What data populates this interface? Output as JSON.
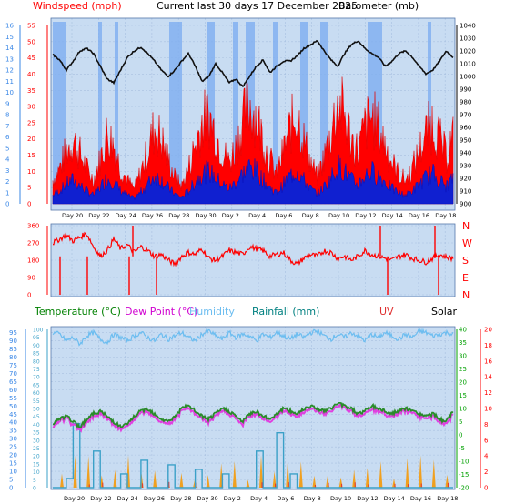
{
  "header": {
    "left_title": "Windspeed (mph)",
    "center_title": "Current last 30 days 17 December 2025",
    "right_title": "Barometer (mb)"
  },
  "colors": {
    "background": "#cfdff2",
    "panel_bg": "#cfe0f4",
    "axis_red": "#ff0000",
    "axis_blue": "#3a87e6",
    "axis_green": "#00a000",
    "humidity": "#6cbdf0",
    "temperature": "#2a8c2a",
    "dewpoint": "#e040e0",
    "rainfall": "#3ba0c8",
    "uv": "#e03030",
    "solar": "#f0a020"
  },
  "chart_data": [
    {
      "type": "line",
      "name": "wind-barometer",
      "y_left_label": "Windspeed (mph)",
      "y_left_ticks": [
        0,
        5,
        10,
        15,
        20,
        25,
        30,
        35,
        40,
        45,
        50,
        55
      ],
      "y_left_outer_ticks": [
        0,
        1,
        2,
        3,
        4,
        5,
        6,
        7,
        8,
        9,
        10,
        11,
        12,
        13,
        14,
        15,
        16
      ],
      "y_right_label": "Barometer (mb)",
      "y_right_ticks": [
        900,
        910,
        920,
        930,
        940,
        950,
        960,
        970,
        980,
        990,
        1000,
        1010,
        1020,
        1030,
        1040
      ],
      "x_ticks": [
        "Day 20",
        "Day 22",
        "Day 24",
        "Day 26",
        "Day 28",
        "Day 30",
        "Day 2",
        "Day 4",
        "Day 6",
        "Day 8",
        "Day 10",
        "Day 12",
        "Day 14",
        "Day 16",
        "Day 18"
      ],
      "barometer_profile": [
        1017,
        1013,
        1005,
        1012,
        1020,
        1022,
        1018,
        1008,
        998,
        995,
        1005,
        1015,
        1020,
        1023,
        1018,
        1012,
        1005,
        1000,
        1005,
        1012,
        1018,
        1008,
        996,
        1000,
        1010,
        1003,
        995,
        998,
        992,
        1000,
        1008,
        1013,
        1003,
        1008,
        1012,
        1012,
        1016,
        1022,
        1025,
        1028,
        1020,
        1013,
        1008,
        1018,
        1025,
        1028,
        1022,
        1018,
        1015,
        1008,
        1012,
        1018,
        1020,
        1015,
        1008,
        1002,
        1005,
        1012,
        1020,
        1015
      ],
      "gust_profile": [
        8,
        12,
        18,
        22,
        17,
        12,
        8,
        15,
        24,
        20,
        12,
        8,
        5,
        11,
        18,
        26,
        22,
        15,
        9,
        6,
        12,
        20,
        28,
        30,
        24,
        18,
        14,
        20,
        28,
        34,
        30,
        22,
        15,
        10,
        18,
        26,
        31,
        22,
        14,
        9,
        16,
        24,
        35,
        30,
        22,
        18,
        26,
        30,
        26,
        20,
        14,
        10,
        8,
        12,
        18,
        24,
        28,
        22,
        16,
        24
      ]
    },
    {
      "type": "line",
      "name": "wind-direction",
      "y_left_ticks": [
        0,
        90,
        180,
        270,
        360
      ],
      "y_right_labels": [
        "N",
        "W",
        "S",
        "E",
        "N"
      ],
      "direction_profile": [
        270,
        290,
        310,
        280,
        300,
        320,
        250,
        200,
        230,
        290,
        240,
        260,
        220,
        250,
        230,
        200,
        210,
        180,
        160,
        200,
        220,
        210,
        240,
        190,
        180,
        200,
        230,
        220,
        210,
        250,
        240,
        230,
        200,
        210,
        220,
        180,
        160,
        190,
        210,
        200,
        230,
        220,
        190,
        200,
        180,
        200,
        230,
        210,
        200,
        190,
        180,
        200,
        210,
        190,
        180,
        170,
        190,
        210,
        195,
        190
      ]
    },
    {
      "type": "line",
      "name": "temp-humidity-rain",
      "legend": [
        "Temperature (°C)",
        "Dew Point (°C)",
        "Humidity",
        "Rainfall (mm)",
        "UV",
        "Solar"
      ],
      "y_left_ticks": [
        0,
        5,
        10,
        15,
        20,
        25,
        30,
        35,
        40,
        45,
        50,
        55,
        60,
        65,
        70,
        75,
        80,
        85,
        90,
        95
      ],
      "y_left_inner_ticks": [
        0,
        5,
        10,
        15,
        20,
        25,
        30,
        35,
        40,
        45,
        50,
        55,
        60,
        65,
        70,
        75,
        80,
        85,
        90,
        95,
        100
      ],
      "y_right_ticks": [
        -20,
        -15,
        -10,
        -5,
        0,
        5,
        10,
        15,
        20,
        25,
        30,
        35,
        40
      ],
      "y_right_outer_ticks": [
        0,
        2,
        4,
        6,
        8,
        10,
        12,
        14,
        16,
        18,
        20
      ],
      "temperature_profile": [
        4,
        6,
        7,
        5,
        3,
        6,
        8,
        9,
        7,
        5,
        3,
        4,
        7,
        9,
        10,
        8,
        6,
        5,
        7,
        10,
        11,
        9,
        7,
        6,
        8,
        10,
        9,
        7,
        5,
        8,
        9,
        7,
        6,
        8,
        10,
        9,
        8,
        10,
        11,
        10,
        9,
        10,
        12,
        11,
        10,
        8,
        9,
        11,
        10,
        9,
        8,
        9,
        10,
        9,
        8,
        7,
        8,
        6,
        5,
        9
      ],
      "humidity_profile": [
        95,
        94,
        90,
        92,
        88,
        93,
        95,
        91,
        89,
        94,
        92,
        90,
        93,
        95,
        92,
        90,
        94,
        91,
        93,
        95,
        92,
        90,
        94,
        96,
        93,
        91,
        95,
        92,
        94,
        93,
        90,
        94,
        92,
        95,
        93,
        91,
        94,
        92,
        95,
        96,
        93,
        91,
        94,
        92,
        95,
        93,
        90,
        94,
        92,
        95,
        93,
        91,
        94,
        92,
        96,
        95,
        93,
        94,
        95,
        94
      ],
      "rain_profile": [
        0,
        0,
        2,
        14,
        0,
        0,
        8,
        0,
        0,
        0,
        3,
        0,
        0,
        6,
        0,
        0,
        0,
        5,
        0,
        0,
        0,
        4,
        0,
        0,
        0,
        3,
        0,
        0,
        0,
        0,
        8,
        0,
        0,
        12,
        0,
        3,
        0,
        0,
        0,
        0,
        0,
        0,
        0,
        0,
        0,
        0,
        0,
        0,
        0,
        0,
        0,
        0,
        0,
        0,
        0,
        0,
        0,
        0,
        0,
        0
      ],
      "x_ticks": [
        "Day 20",
        "Day 22",
        "Day 24",
        "Day 26",
        "Day 28",
        "Day 30",
        "Day 2",
        "Day 4",
        "Day 6",
        "Day 8",
        "Day 10",
        "Day 12",
        "Day 14",
        "Day 16",
        "Day 18"
      ]
    }
  ]
}
